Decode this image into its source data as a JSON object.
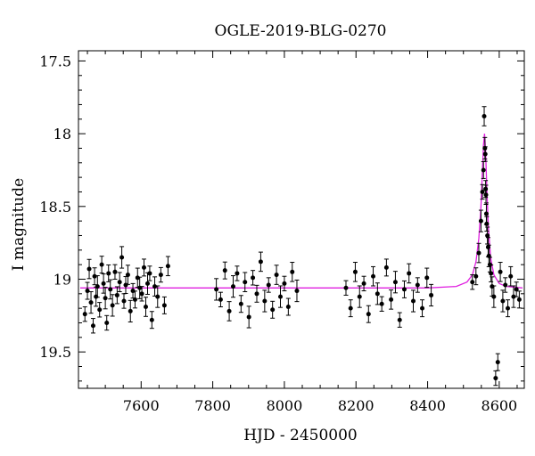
{
  "chart_data": {
    "type": "scatter",
    "title": "OGLE-2019-BLG-0270",
    "xlabel": "HJD - 2450000",
    "ylabel": "I magnitude",
    "xlim": [
      7425,
      8670
    ],
    "ylim": [
      17.43,
      19.75
    ],
    "y_inverted": true,
    "xticks": [
      7600,
      7800,
      8000,
      8200,
      8400,
      8600
    ],
    "xtick_labels": [
      "7600",
      "7800",
      "8000",
      "8200",
      "8400",
      "8600"
    ],
    "yticks": [
      17.5,
      18,
      18.5,
      19,
      19.5
    ],
    "ytick_labels": [
      "17.5",
      "18",
      "18.5",
      "19",
      "19.5"
    ],
    "grid": false,
    "series": [
      {
        "type": "scatter",
        "marker": "filled-circle-with-errorbars",
        "color": "#000000",
        "x": [
          7443,
          7450,
          7455,
          7460,
          7466,
          7470,
          7474,
          7478,
          7484,
          7490,
          7495,
          7500,
          7504,
          7509,
          7514,
          7520,
          7527,
          7533,
          7540,
          7546,
          7552,
          7557,
          7563,
          7570,
          7577,
          7583,
          7590,
          7596,
          7602,
          7608,
          7613,
          7618,
          7624,
          7630,
          7638,
          7646,
          7655,
          7665,
          7675,
          7810,
          7822,
          7834,
          7846,
          7857,
          7868,
          7879,
          7890,
          7901,
          7912,
          7923,
          7934,
          7945,
          7956,
          7967,
          7978,
          7989,
          8000,
          8011,
          8022,
          8035,
          8172,
          8185,
          8198,
          8210,
          8222,
          8235,
          8248,
          8260,
          8272,
          8285,
          8298,
          8310,
          8322,
          8335,
          8348,
          8360,
          8372,
          8385,
          8398,
          8410,
          8525,
          8535,
          8543,
          8549,
          8553,
          8556,
          8558,
          8560,
          8561,
          8562,
          8563,
          8564,
          8565,
          8567,
          8569,
          8571,
          8574,
          8577,
          8580,
          8585,
          8590,
          8596,
          8603,
          8610,
          8617,
          8624,
          8632,
          8640,
          8648,
          8656
        ],
        "y": [
          19.24,
          19.08,
          18.93,
          19.16,
          19.32,
          18.98,
          19.12,
          19.05,
          19.21,
          18.9,
          19.03,
          19.13,
          19.3,
          18.96,
          19.07,
          19.18,
          18.95,
          19.11,
          19.02,
          18.85,
          19.15,
          19.04,
          18.97,
          19.22,
          19.08,
          19.14,
          18.99,
          19.06,
          19.1,
          18.92,
          19.19,
          19.03,
          18.96,
          19.28,
          19.05,
          19.12,
          18.97,
          19.18,
          18.91,
          19.07,
          19.14,
          18.94,
          19.22,
          19.05,
          18.96,
          19.17,
          19.02,
          19.26,
          18.99,
          19.1,
          18.88,
          19.15,
          19.04,
          19.21,
          18.97,
          19.12,
          19.03,
          19.19,
          18.95,
          19.08,
          19.06,
          19.2,
          18.95,
          19.12,
          19.03,
          19.24,
          18.98,
          19.1,
          19.17,
          18.92,
          19.14,
          19.02,
          19.28,
          19.07,
          18.96,
          19.15,
          19.04,
          19.2,
          18.99,
          19.11,
          19.02,
          18.98,
          18.82,
          18.6,
          18.4,
          18.25,
          17.88,
          18.1,
          18.14,
          18.38,
          18.42,
          18.55,
          18.62,
          18.7,
          18.78,
          18.84,
          18.9,
          18.96,
          19.05,
          19.12,
          19.68,
          19.57,
          18.95,
          19.15,
          19.04,
          19.2,
          18.98,
          19.12,
          19.07,
          19.14
        ]
      },
      {
        "type": "line",
        "color": "#e020e0",
        "x": [
          7430,
          8000,
          8400,
          8480,
          8510,
          8525,
          8535,
          8543,
          8549,
          8553,
          8556,
          8559,
          8562,
          8566,
          8570,
          8576,
          8585,
          8600,
          8620,
          8665
        ],
        "y": [
          19.06,
          19.06,
          19.06,
          19.05,
          19.02,
          18.97,
          18.88,
          18.72,
          18.5,
          18.26,
          18.08,
          18.0,
          18.12,
          18.42,
          18.65,
          18.85,
          18.97,
          19.03,
          19.05,
          19.06
        ]
      }
    ]
  }
}
